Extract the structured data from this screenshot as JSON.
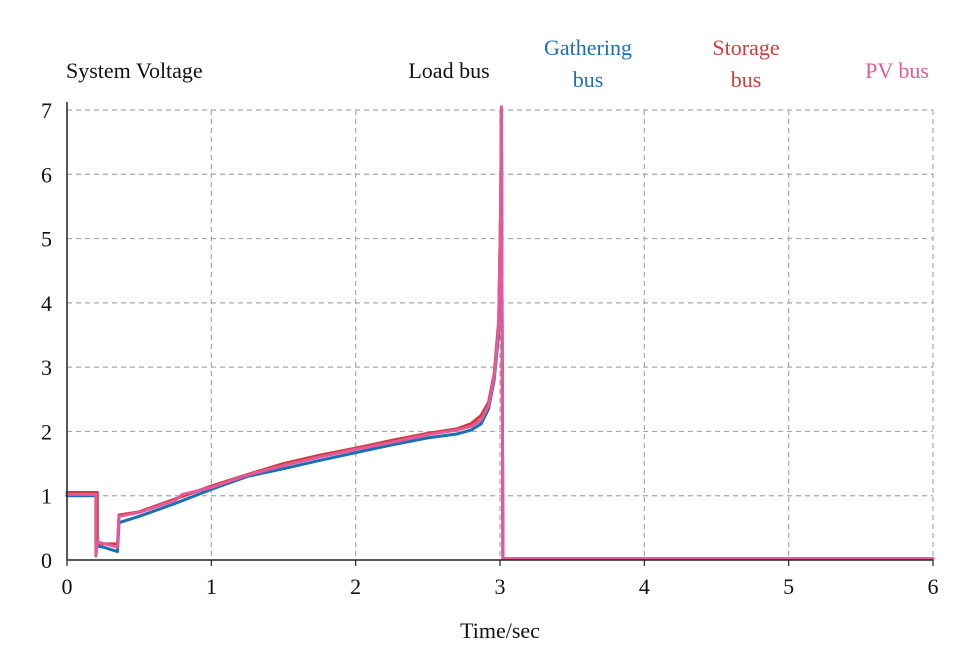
{
  "chart_data": {
    "type": "line",
    "title": "System Voltage",
    "xlabel": "Time/sec",
    "ylabel": "",
    "xlim": [
      0,
      6
    ],
    "ylim": [
      0,
      7
    ],
    "grid": true,
    "legend_placement": "top",
    "x_ticks": [
      "0",
      "1",
      "2",
      "3",
      "4",
      "5",
      "6"
    ],
    "y_ticks": [
      "0",
      "1",
      "2",
      "3",
      "4",
      "5",
      "6",
      "7"
    ],
    "legend": [
      {
        "key": "load",
        "line1": "Load bus",
        "line2": "",
        "color": "#111111"
      },
      {
        "key": "gathering",
        "line1": "Gathering",
        "line2": "bus",
        "color": "#1a6fb5"
      },
      {
        "key": "storage",
        "line1": "Storage",
        "line2": "bus",
        "color": "#d03a3a"
      },
      {
        "key": "pv",
        "line1": "PV bus",
        "line2": "",
        "color": "#e35a9a"
      }
    ],
    "series": [
      {
        "key": "gathering",
        "name": "Gathering bus",
        "color": "#1a6fb5",
        "points": [
          [
            0,
            1.0
          ],
          [
            0.2,
            1.0
          ],
          [
            0.2,
            0.22
          ],
          [
            0.25,
            0.2
          ],
          [
            0.35,
            0.13
          ],
          [
            0.36,
            0.58
          ],
          [
            0.5,
            0.68
          ],
          [
            0.75,
            0.88
          ],
          [
            1.0,
            1.1
          ],
          [
            1.25,
            1.3
          ],
          [
            1.5,
            1.42
          ],
          [
            1.75,
            1.55
          ],
          [
            2.0,
            1.67
          ],
          [
            2.25,
            1.79
          ],
          [
            2.5,
            1.9
          ],
          [
            2.7,
            1.96
          ],
          [
            2.8,
            2.02
          ],
          [
            2.87,
            2.12
          ],
          [
            2.92,
            2.35
          ],
          [
            2.96,
            2.8
          ],
          [
            2.99,
            3.5
          ],
          [
            3.005,
            5.5
          ],
          [
            3.01,
            7.0
          ],
          [
            3.02,
            0.02
          ],
          [
            6.0,
            0.02
          ]
        ]
      },
      {
        "key": "storage",
        "name": "Storage bus",
        "color": "#d03a3a",
        "points": [
          [
            0,
            1.05
          ],
          [
            0.21,
            1.05
          ],
          [
            0.21,
            0.26
          ],
          [
            0.25,
            0.25
          ],
          [
            0.35,
            0.25
          ],
          [
            0.36,
            0.7
          ],
          [
            0.5,
            0.75
          ],
          [
            0.75,
            0.95
          ],
          [
            1.0,
            1.15
          ],
          [
            1.25,
            1.33
          ],
          [
            1.5,
            1.5
          ],
          [
            1.75,
            1.63
          ],
          [
            2.0,
            1.74
          ],
          [
            2.25,
            1.86
          ],
          [
            2.5,
            1.97
          ],
          [
            2.7,
            2.04
          ],
          [
            2.8,
            2.12
          ],
          [
            2.87,
            2.25
          ],
          [
            2.92,
            2.45
          ],
          [
            2.96,
            2.9
          ],
          [
            2.99,
            3.7
          ],
          [
            3.005,
            5.5
          ],
          [
            3.01,
            7.0
          ],
          [
            3.02,
            0.02
          ],
          [
            6.0,
            0.02
          ]
        ]
      },
      {
        "key": "pv",
        "name": "PV bus",
        "color": "#e35a9a",
        "points": [
          [
            0,
            1.02
          ],
          [
            0.2,
            1.02
          ],
          [
            0.2,
            0.06
          ],
          [
            0.21,
            0.28
          ],
          [
            0.35,
            0.2
          ],
          [
            0.36,
            0.68
          ],
          [
            0.5,
            0.74
          ],
          [
            0.75,
            0.93
          ],
          [
            0.8,
            1.02
          ],
          [
            1.0,
            1.13
          ],
          [
            1.25,
            1.32
          ],
          [
            1.5,
            1.47
          ],
          [
            1.75,
            1.6
          ],
          [
            2.0,
            1.72
          ],
          [
            2.25,
            1.83
          ],
          [
            2.5,
            1.95
          ],
          [
            2.7,
            2.02
          ],
          [
            2.8,
            2.08
          ],
          [
            2.87,
            2.18
          ],
          [
            2.92,
            2.4
          ],
          [
            2.96,
            2.85
          ],
          [
            2.99,
            3.6
          ],
          [
            3.005,
            5.6
          ],
          [
            3.01,
            7.05
          ],
          [
            3.02,
            0.02
          ],
          [
            6.0,
            0.02
          ]
        ]
      }
    ]
  }
}
